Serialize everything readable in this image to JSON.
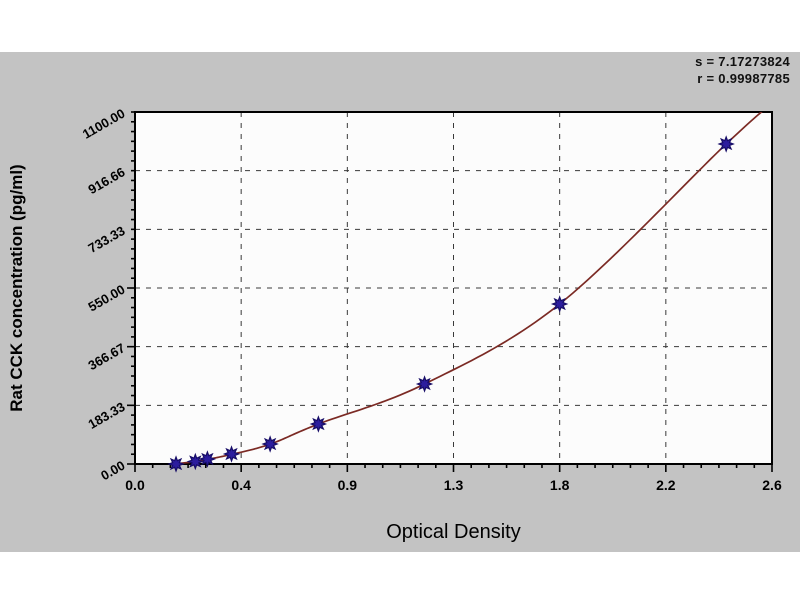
{
  "panel": {
    "background": "#c3c3c3",
    "plot_background": "#fcfcfc"
  },
  "stats": {
    "line1": "s = 7.17273824",
    "line2": "r = 0.99987785"
  },
  "chart_data": {
    "type": "scatter",
    "title": "",
    "xlabel": "Optical Density",
    "ylabel": "Rat CCK concentration (pg/ml)",
    "xlim": [
      0,
      2.64
    ],
    "ylim": [
      0,
      1100
    ],
    "grid": "dashed",
    "legend_position": "none",
    "x_ticks": {
      "labels": [
        "0.0",
        "0.4",
        "0.9",
        "1.3",
        "1.8",
        "2.2",
        "2.6"
      ],
      "values": [
        0,
        0.44,
        0.88,
        1.32,
        1.76,
        2.2,
        2.64
      ],
      "minor_per_interval": 5
    },
    "y_ticks": {
      "labels": [
        "0.00",
        "183.33",
        "366.67",
        "550.00",
        "733.33",
        "916.66",
        "1100.00"
      ],
      "values": [
        0,
        183.33,
        366.67,
        550,
        733.33,
        916.66,
        1100
      ],
      "minor_per_interval": 5,
      "label_rotation_deg": -30
    },
    "points": {
      "od": [
        0.17,
        0.25,
        0.3,
        0.4,
        0.56,
        0.76,
        1.2,
        1.76,
        2.45
      ],
      "concentration": [
        0,
        7.8,
        15.6,
        31.25,
        62.5,
        125,
        250,
        500,
        1000
      ]
    },
    "curve": {
      "description": "fitted standard curve",
      "control_points": [
        [
          0.15,
          0
        ],
        [
          0.25,
          7.8
        ],
        [
          0.4,
          30
        ],
        [
          0.56,
          62
        ],
        [
          0.76,
          125
        ],
        [
          1.2,
          250
        ],
        [
          1.76,
          500
        ],
        [
          2.45,
          1000
        ],
        [
          2.66,
          1140
        ]
      ]
    },
    "annotations": {
      "s": "7.17273824",
      "r": "0.99987785"
    },
    "colors": {
      "curve": "#7b2a24",
      "marker_fill": "#2c1d9e",
      "marker_stroke": "#170d67",
      "grid": "#3a3a3a",
      "axis": "#000000",
      "text": "#000000"
    }
  }
}
